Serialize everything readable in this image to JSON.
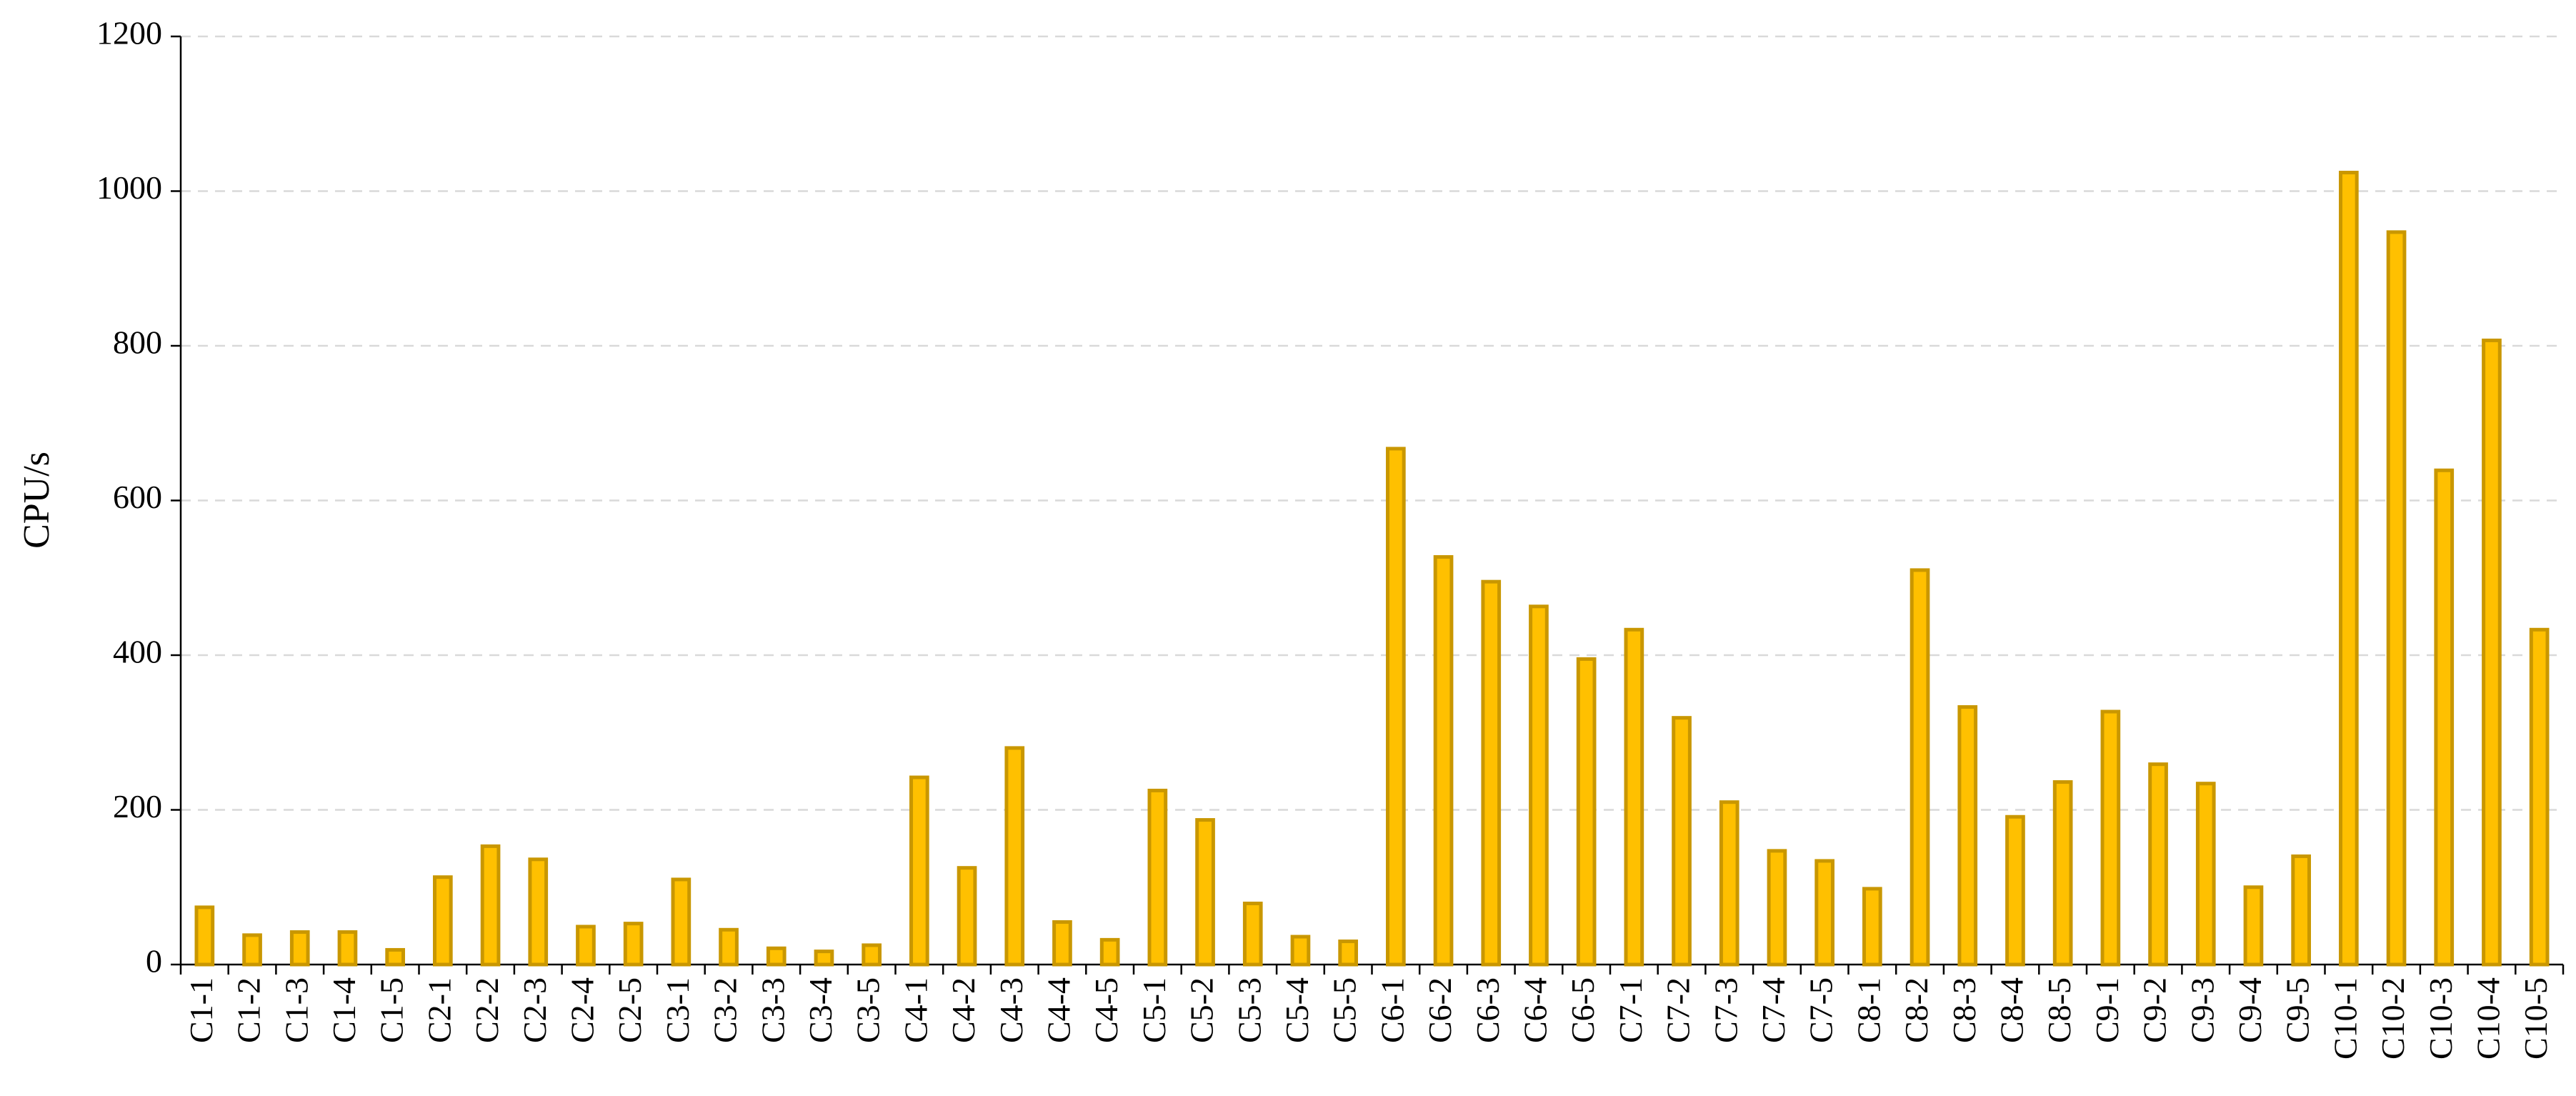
{
  "chart_data": {
    "type": "bar",
    "y_label": "CPU/s",
    "categories": [
      "C1-1",
      "C1-2",
      "C1-3",
      "C1-4",
      "C1-5",
      "C2-1",
      "C2-2",
      "C2-3",
      "C2-4",
      "C2-5",
      "C3-1",
      "C3-2",
      "C3-3",
      "C3-4",
      "C3-5",
      "C4-1",
      "C4-2",
      "C4-3",
      "C4-4",
      "C4-5",
      "C5-1",
      "C5-2",
      "C5-3",
      "C5-4",
      "C5-5",
      "C6-1",
      "C6-2",
      "C6-3",
      "C6-4",
      "C6-5",
      "C7-1",
      "C7-2",
      "C7-3",
      "C7-4",
      "C7-5",
      "C8-1",
      "C8-2",
      "C8-3",
      "C8-4",
      "C8-5",
      "C9-1",
      "C9-2",
      "C9-3",
      "C9-4",
      "C9-5",
      "C10-1",
      "C10-2",
      "C10-3",
      "C10-4",
      "C10-5"
    ],
    "values": [
      74,
      38,
      42,
      42,
      19,
      113,
      153,
      136,
      49,
      53,
      110,
      45,
      21,
      17,
      25,
      242,
      125,
      280,
      55,
      32,
      225,
      187,
      79,
      36,
      30,
      667,
      527,
      495,
      463,
      395,
      433,
      319,
      210,
      147,
      134,
      98,
      510,
      333,
      191,
      236,
      327,
      259,
      234,
      100,
      140,
      1024,
      947,
      639,
      807,
      433
    ],
    "color": "#ffc000",
    "edge_color": "#c99700",
    "ylim": [
      0,
      1200
    ],
    "yticks": [
      0,
      200,
      400,
      600,
      800,
      1000,
      1200
    ],
    "grid": true
  }
}
